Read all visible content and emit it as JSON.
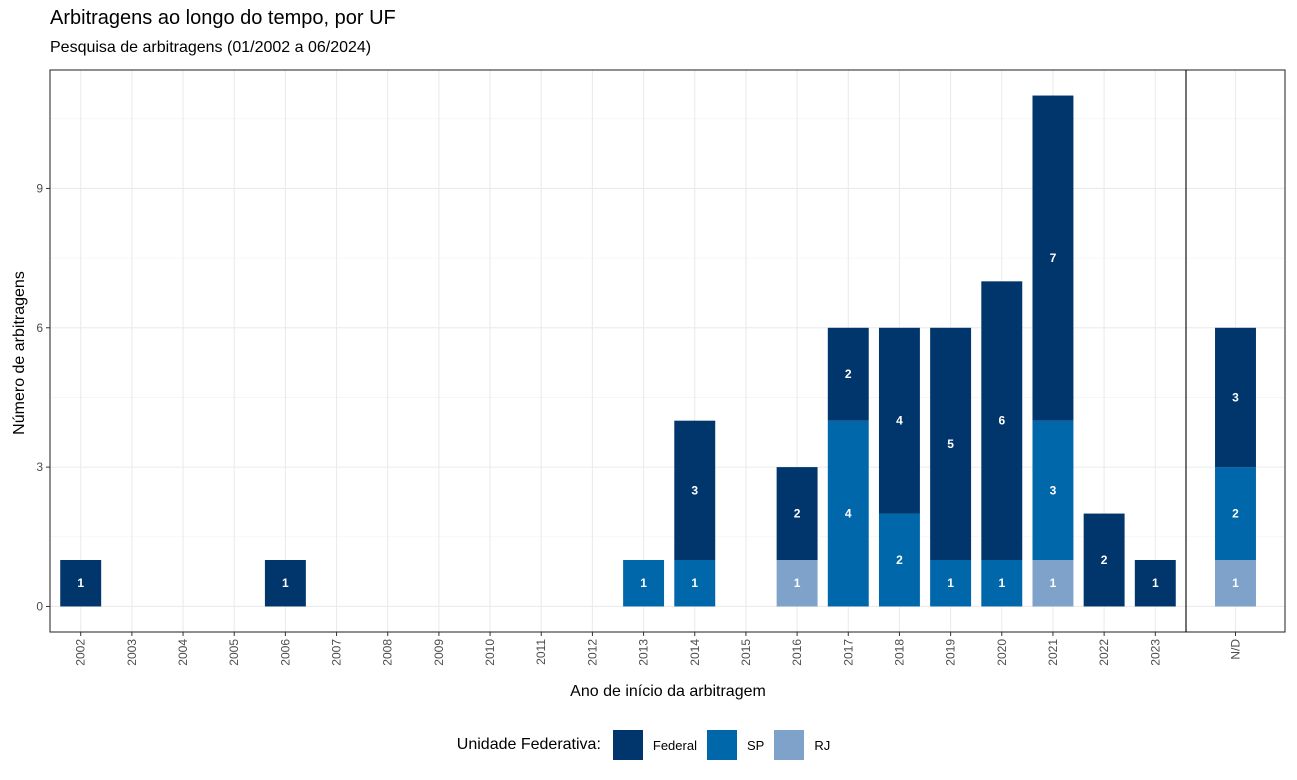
{
  "chart_data": {
    "type": "bar",
    "stacked": true,
    "title": "Arbitragens ao longo do tempo, por UF",
    "subtitle": "Pesquisa de arbitragens (01/2002 a 06/2024)",
    "xlabel": "Ano de início da arbitragem",
    "ylabel": "Número de arbitragens",
    "ylim": [
      0,
      11
    ],
    "yticks": [
      0,
      3,
      6,
      9
    ],
    "grid": true,
    "categories": [
      "2002",
      "2003",
      "2004",
      "2005",
      "2006",
      "2007",
      "2008",
      "2009",
      "2010",
      "2011",
      "2012",
      "2013",
      "2014",
      "2015",
      "2016",
      "2017",
      "2018",
      "2019",
      "2020",
      "2021",
      "2022",
      "2023"
    ],
    "extra_panel": {
      "categories": [
        "N/D"
      ]
    },
    "legend": {
      "title": "Unidade Federativa:",
      "position": "bottom"
    },
    "series": [
      {
        "name": "RJ",
        "color": "#7fa2cb",
        "values": [
          0,
          0,
          0,
          0,
          0,
          0,
          0,
          0,
          0,
          0,
          0,
          0,
          0,
          0,
          1,
          0,
          0,
          0,
          0,
          1,
          0,
          0
        ],
        "nd": 1
      },
      {
        "name": "SP",
        "color": "#0067ab",
        "values": [
          0,
          0,
          0,
          0,
          0,
          0,
          0,
          0,
          0,
          0,
          0,
          1,
          1,
          0,
          0,
          4,
          2,
          1,
          1,
          3,
          0,
          0
        ],
        "nd": 2
      },
      {
        "name": "Federal",
        "color": "#01366c",
        "values": [
          1,
          0,
          0,
          0,
          1,
          0,
          0,
          0,
          0,
          0,
          0,
          0,
          3,
          0,
          2,
          2,
          4,
          5,
          6,
          7,
          2,
          1
        ],
        "nd": 3
      }
    ],
    "legend_order": [
      "Federal",
      "SP",
      "RJ"
    ]
  }
}
